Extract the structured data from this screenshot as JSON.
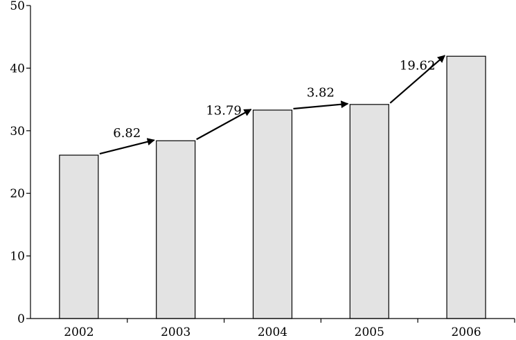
{
  "chart_data": {
    "type": "bar",
    "categories": [
      "2002",
      "2003",
      "2004",
      "2005",
      "2006"
    ],
    "values": [
      26.1,
      28.4,
      33.3,
      34.2,
      41.9
    ],
    "ylim": [
      0,
      50
    ],
    "yticks": [
      "0",
      "10",
      "20",
      "30",
      "40",
      "50"
    ],
    "grid": false,
    "annotations": [
      {
        "from": "2002",
        "to": "2003",
        "label": "6.82"
      },
      {
        "from": "2003",
        "to": "2004",
        "label": "13.79"
      },
      {
        "from": "2004",
        "to": "2005",
        "label": "3.82"
      },
      {
        "from": "2005",
        "to": "2006",
        "label": "19.62"
      }
    ],
    "colors": {
      "bar_fill": "#e3e3e3",
      "bar_stroke": "#000000"
    }
  }
}
